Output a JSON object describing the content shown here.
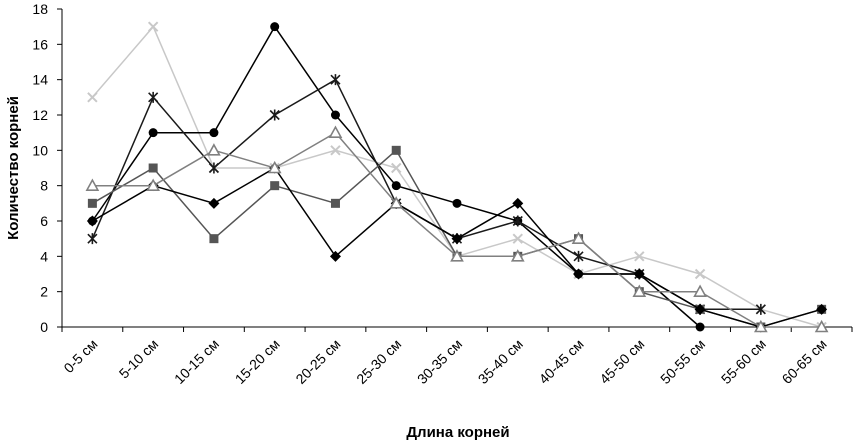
{
  "chart_data": {
    "type": "line",
    "title": "",
    "xlabel": "Длина корней",
    "ylabel": "Количество корней",
    "ylim": [
      0,
      18
    ],
    "yticks": [
      0,
      2,
      4,
      6,
      8,
      10,
      12,
      14,
      16,
      18
    ],
    "grid": false,
    "legend": "none",
    "categories": [
      "0-5 см",
      "5-10 см",
      "10-15 см",
      "15-20 см",
      "20-25 см",
      "25-30 см",
      "30-35 см",
      "35-40 см",
      "40-45 см",
      "45-50 см",
      "50-55 см",
      "55-60 см",
      "60-65 см"
    ],
    "series": [
      {
        "marker": "x",
        "color": "#c8c8c8",
        "values": [
          13,
          17,
          9,
          9,
          10,
          9,
          4,
          5,
          3,
          4,
          3,
          1,
          0
        ]
      },
      {
        "marker": "circle",
        "color": "#000000",
        "values": [
          6,
          11,
          11,
          17,
          12,
          8,
          7,
          6,
          3,
          3,
          0,
          null,
          null
        ]
      },
      {
        "marker": "star",
        "color": "#1a1a1a",
        "values": [
          5,
          13,
          9,
          12,
          14,
          7,
          5,
          6,
          4,
          3,
          1,
          1,
          null
        ]
      },
      {
        "marker": "square",
        "color": "#555555",
        "values": [
          7,
          9,
          5,
          8,
          7,
          10,
          4,
          4,
          5,
          2,
          1,
          0,
          1
        ]
      },
      {
        "marker": "diamond",
        "color": "#000000",
        "values": [
          6,
          8,
          7,
          9,
          4,
          7,
          5,
          7,
          3,
          3,
          1,
          0,
          1
        ]
      },
      {
        "marker": "triangle",
        "color": "#808080",
        "values": [
          8,
          8,
          10,
          9,
          11,
          7,
          4,
          4,
          5,
          2,
          2,
          0,
          0
        ]
      }
    ]
  }
}
